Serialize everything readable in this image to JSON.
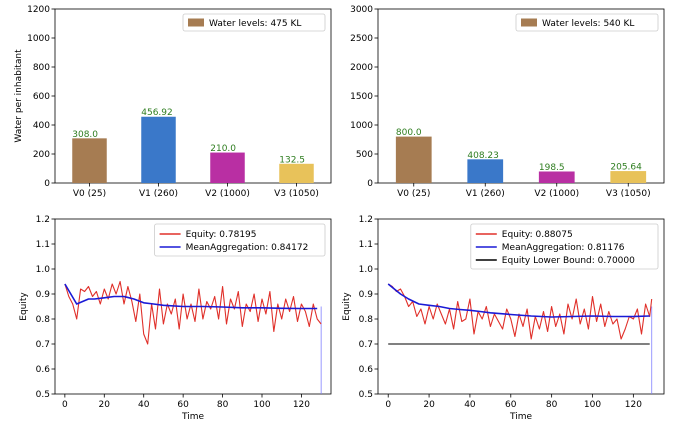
{
  "chart_data": [
    {
      "type": "bar",
      "ylabel": "Water per inhabitant",
      "ylim": [
        0,
        1200
      ],
      "yticks": [
        0,
        200,
        400,
        600,
        800,
        1000,
        1200
      ],
      "categories": [
        "V0 (25)",
        "V1 (260)",
        "V2 (1000)",
        "V3 (1050)"
      ],
      "values": [
        308.0,
        456.92,
        210.0,
        132.5
      ],
      "value_labels": [
        "308.0",
        "456.92",
        "210.0",
        "132.5"
      ],
      "bar_colors": [
        "#a67c52",
        "#3a78c9",
        "#b92fa3",
        "#e8c25a"
      ],
      "legend": {
        "label": "Water levels: 475 KL",
        "color": "#a67c52",
        "position": "upper right"
      },
      "value_label_color": "#2e7d1f"
    },
    {
      "type": "bar",
      "ylim": [
        0,
        3000
      ],
      "yticks": [
        0,
        500,
        1000,
        1500,
        2000,
        2500,
        3000
      ],
      "categories": [
        "V0 (25)",
        "V1 (260)",
        "V2 (1000)",
        "V3 (1050)"
      ],
      "values": [
        800.0,
        408.23,
        198.5,
        205.64
      ],
      "value_labels": [
        "800.0",
        "408.23",
        "198.5",
        "205.64"
      ],
      "bar_colors": [
        "#a67c52",
        "#3a78c9",
        "#b92fa3",
        "#e8c25a"
      ],
      "legend": {
        "label": "Water levels: 540 KL",
        "color": "#a67c52",
        "position": "upper right"
      },
      "value_label_color": "#2e7d1f"
    },
    {
      "type": "line",
      "xlabel": "Time",
      "ylabel": "Equity",
      "xlim": [
        -5,
        135
      ],
      "ylim": [
        0.5,
        1.2
      ],
      "xticks": [
        0,
        20,
        40,
        60,
        80,
        100,
        120
      ],
      "yticks": [
        0.5,
        0.6,
        0.7,
        0.8,
        0.9,
        1.0,
        1.1,
        1.2
      ],
      "ytick_labels": [
        "0.5",
        "0.6",
        "0.7",
        "0.8",
        "0.9",
        "1.0",
        "1.1",
        "1.2"
      ],
      "legend_position": "upper right",
      "vline_x": 130,
      "vline_color": "#8080ff",
      "series": [
        {
          "name": "Equity: 0.78195",
          "color": "#e0302a",
          "x": [
            0,
            2,
            4,
            6,
            8,
            10,
            12,
            14,
            16,
            18,
            20,
            22,
            24,
            26,
            28,
            30,
            32,
            34,
            36,
            38,
            40,
            42,
            44,
            46,
            48,
            50,
            52,
            54,
            56,
            58,
            60,
            62,
            64,
            66,
            68,
            70,
            72,
            74,
            76,
            78,
            80,
            82,
            84,
            86,
            88,
            90,
            92,
            94,
            96,
            98,
            100,
            102,
            104,
            106,
            108,
            110,
            112,
            114,
            116,
            118,
            120,
            122,
            124,
            126,
            128,
            130
          ],
          "y": [
            0.94,
            0.89,
            0.86,
            0.8,
            0.92,
            0.91,
            0.93,
            0.89,
            0.91,
            0.86,
            0.92,
            0.88,
            0.94,
            0.9,
            0.95,
            0.86,
            0.93,
            0.87,
            0.79,
            0.9,
            0.74,
            0.7,
            0.86,
            0.76,
            0.92,
            0.78,
            0.86,
            0.82,
            0.88,
            0.76,
            0.9,
            0.8,
            0.86,
            0.79,
            0.92,
            0.8,
            0.87,
            0.84,
            0.89,
            0.8,
            0.93,
            0.78,
            0.88,
            0.84,
            0.91,
            0.77,
            0.86,
            0.83,
            0.9,
            0.79,
            0.88,
            0.82,
            0.91,
            0.75,
            0.86,
            0.8,
            0.88,
            0.83,
            0.89,
            0.79,
            0.86,
            0.83,
            0.77,
            0.86,
            0.8,
            0.78
          ]
        },
        {
          "name": "MeanAggregation: 0.84172",
          "color": "#1a1ad6",
          "x": [
            0,
            3,
            6,
            9,
            12,
            15,
            20,
            25,
            30,
            35,
            40,
            45,
            50,
            60,
            70,
            80,
            90,
            100,
            110,
            120,
            128
          ],
          "y": [
            0.94,
            0.9,
            0.86,
            0.87,
            0.88,
            0.88,
            0.885,
            0.89,
            0.89,
            0.88,
            0.865,
            0.86,
            0.855,
            0.85,
            0.85,
            0.848,
            0.845,
            0.845,
            0.843,
            0.842,
            0.842
          ]
        }
      ]
    },
    {
      "type": "line",
      "xlabel": "Time",
      "ylabel": "Equity",
      "xlim": [
        -5,
        135
      ],
      "ylim": [
        0.5,
        1.2
      ],
      "xticks": [
        0,
        20,
        40,
        60,
        80,
        100,
        120
      ],
      "yticks": [
        0.5,
        0.6,
        0.7,
        0.8,
        0.9,
        1.0,
        1.1,
        1.2
      ],
      "ytick_labels": [
        "0.5",
        "0.6",
        "0.7",
        "0.8",
        "0.9",
        "1.0",
        "1.1",
        "1.2"
      ],
      "legend_position": "upper right",
      "vline_x": 129,
      "vline_color": "#8080ff",
      "series": [
        {
          "name": "Equity: 0.88075",
          "color": "#e0302a",
          "x": [
            0,
            2,
            4,
            6,
            8,
            10,
            12,
            14,
            16,
            18,
            20,
            22,
            24,
            26,
            28,
            30,
            32,
            34,
            36,
            38,
            40,
            42,
            44,
            46,
            48,
            50,
            52,
            54,
            56,
            58,
            60,
            62,
            64,
            66,
            68,
            70,
            72,
            74,
            76,
            78,
            80,
            82,
            84,
            86,
            88,
            90,
            92,
            94,
            96,
            98,
            100,
            102,
            104,
            106,
            108,
            110,
            112,
            114,
            116,
            118,
            120,
            122,
            124,
            126,
            128,
            129
          ],
          "y": [
            0.94,
            0.93,
            0.91,
            0.92,
            0.89,
            0.85,
            0.87,
            0.81,
            0.84,
            0.78,
            0.85,
            0.8,
            0.86,
            0.82,
            0.78,
            0.84,
            0.76,
            0.87,
            0.79,
            0.8,
            0.88,
            0.74,
            0.83,
            0.8,
            0.85,
            0.77,
            0.82,
            0.79,
            0.76,
            0.84,
            0.8,
            0.73,
            0.82,
            0.77,
            0.84,
            0.72,
            0.81,
            0.76,
            0.83,
            0.75,
            0.85,
            0.77,
            0.82,
            0.74,
            0.86,
            0.8,
            0.88,
            0.78,
            0.84,
            0.76,
            0.89,
            0.79,
            0.86,
            0.77,
            0.83,
            0.78,
            0.8,
            0.72,
            0.76,
            0.81,
            0.8,
            0.84,
            0.74,
            0.86,
            0.81,
            0.88
          ]
        },
        {
          "name": "MeanAggregation: 0.81176",
          "color": "#1a1ad6",
          "x": [
            0,
            3,
            6,
            10,
            15,
            20,
            25,
            30,
            35,
            40,
            45,
            50,
            60,
            70,
            80,
            90,
            100,
            110,
            120,
            128
          ],
          "y": [
            0.94,
            0.92,
            0.9,
            0.88,
            0.86,
            0.855,
            0.85,
            0.842,
            0.838,
            0.835,
            0.83,
            0.825,
            0.818,
            0.812,
            0.808,
            0.81,
            0.812,
            0.81,
            0.81,
            0.812
          ]
        },
        {
          "name": "Equity Lower Bound: 0.70000",
          "color": "#000000",
          "x": [
            0,
            128
          ],
          "y": [
            0.7,
            0.7
          ]
        }
      ]
    }
  ]
}
